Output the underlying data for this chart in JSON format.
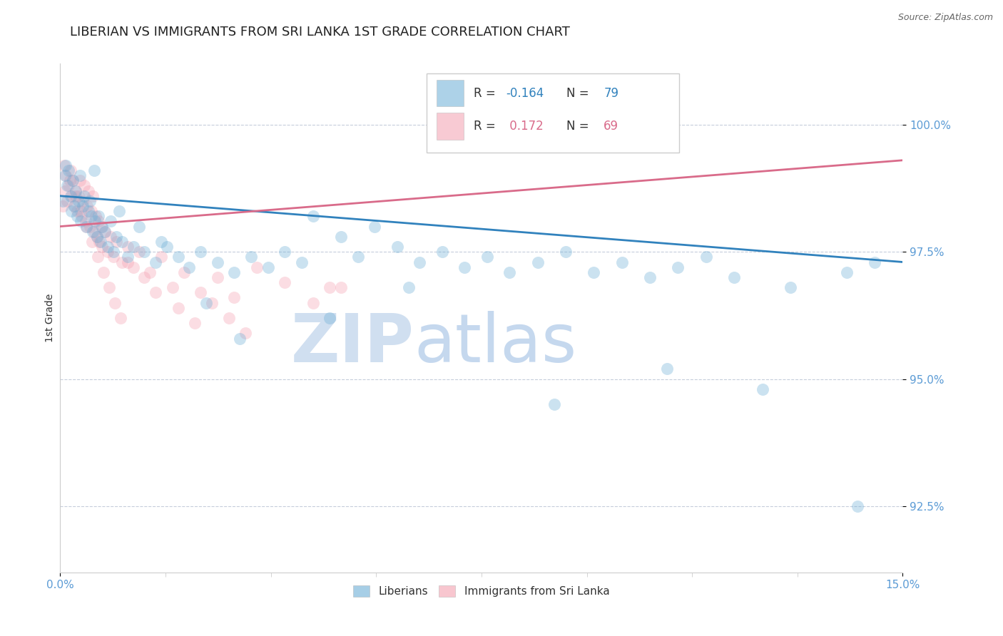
{
  "title": "LIBERIAN VS IMMIGRANTS FROM SRI LANKA 1ST GRADE CORRELATION CHART",
  "source_text": "Source: ZipAtlas.com",
  "ylabel": "1st Grade",
  "xlim": [
    0.0,
    15.0
  ],
  "ylim": [
    91.2,
    101.2
  ],
  "yticks": [
    92.5,
    95.0,
    97.5,
    100.0
  ],
  "ytick_labels": [
    "92.5%",
    "95.0%",
    "97.5%",
    "100.0%"
  ],
  "blue_scatter_x": [
    0.05,
    0.08,
    0.12,
    0.15,
    0.18,
    0.2,
    0.22,
    0.25,
    0.28,
    0.3,
    0.33,
    0.36,
    0.4,
    0.43,
    0.46,
    0.5,
    0.53,
    0.55,
    0.58,
    0.62,
    0.65,
    0.68,
    0.72,
    0.75,
    0.8,
    0.85,
    0.9,
    0.95,
    1.0,
    1.1,
    1.2,
    1.3,
    1.5,
    1.7,
    1.9,
    2.1,
    2.3,
    2.5,
    2.8,
    3.1,
    3.4,
    3.7,
    4.0,
    4.3,
    4.5,
    5.0,
    5.3,
    5.6,
    6.0,
    6.4,
    6.8,
    7.2,
    7.6,
    8.0,
    8.5,
    9.0,
    9.5,
    10.0,
    10.5,
    11.0,
    11.5,
    12.0,
    13.0,
    14.0,
    14.5,
    0.1,
    0.35,
    0.6,
    1.05,
    1.4,
    1.8,
    2.6,
    3.2,
    4.8,
    6.2,
    8.8,
    10.8,
    12.5,
    14.2
  ],
  "blue_scatter_y": [
    98.5,
    99.0,
    98.8,
    99.1,
    98.6,
    98.3,
    98.9,
    98.4,
    98.7,
    98.2,
    98.5,
    98.1,
    98.4,
    98.6,
    98.0,
    98.3,
    98.5,
    98.2,
    97.9,
    98.1,
    97.8,
    98.2,
    97.7,
    98.0,
    97.9,
    97.6,
    98.1,
    97.5,
    97.8,
    97.7,
    97.4,
    97.6,
    97.5,
    97.3,
    97.6,
    97.4,
    97.2,
    97.5,
    97.3,
    97.1,
    97.4,
    97.2,
    97.5,
    97.3,
    98.2,
    97.8,
    97.4,
    98.0,
    97.6,
    97.3,
    97.5,
    97.2,
    97.4,
    97.1,
    97.3,
    97.5,
    97.1,
    97.3,
    97.0,
    97.2,
    97.4,
    97.0,
    96.8,
    97.1,
    97.3,
    99.2,
    99.0,
    99.1,
    98.3,
    98.0,
    97.7,
    96.5,
    95.8,
    96.2,
    96.8,
    94.5,
    95.2,
    94.8,
    92.5
  ],
  "pink_scatter_x": [
    0.05,
    0.08,
    0.1,
    0.12,
    0.15,
    0.18,
    0.2,
    0.22,
    0.25,
    0.28,
    0.3,
    0.33,
    0.35,
    0.38,
    0.4,
    0.43,
    0.45,
    0.48,
    0.5,
    0.53,
    0.55,
    0.58,
    0.6,
    0.63,
    0.65,
    0.68,
    0.7,
    0.73,
    0.75,
    0.8,
    0.85,
    0.9,
    0.95,
    1.0,
    1.1,
    1.2,
    1.3,
    1.4,
    1.6,
    1.8,
    2.0,
    2.2,
    2.5,
    2.8,
    3.1,
    3.5,
    4.0,
    4.5,
    5.0,
    0.07,
    0.17,
    0.27,
    0.37,
    0.47,
    0.57,
    0.67,
    0.77,
    0.87,
    0.97,
    1.07,
    1.2,
    1.5,
    1.7,
    2.1,
    2.4,
    2.7,
    3.0,
    3.3,
    4.8
  ],
  "pink_scatter_y": [
    98.4,
    98.7,
    99.0,
    98.5,
    98.8,
    99.1,
    98.6,
    98.9,
    98.4,
    98.7,
    98.3,
    98.6,
    98.9,
    98.2,
    98.5,
    98.8,
    98.1,
    98.4,
    98.7,
    98.0,
    98.3,
    98.6,
    97.9,
    98.2,
    97.8,
    98.1,
    97.7,
    98.0,
    97.6,
    97.9,
    97.5,
    97.8,
    97.4,
    97.7,
    97.3,
    97.6,
    97.2,
    97.5,
    97.1,
    97.4,
    96.8,
    97.1,
    96.7,
    97.0,
    96.6,
    97.2,
    96.9,
    96.5,
    96.8,
    99.2,
    98.9,
    98.6,
    98.3,
    98.0,
    97.7,
    97.4,
    97.1,
    96.8,
    96.5,
    96.2,
    97.3,
    97.0,
    96.7,
    96.4,
    96.1,
    96.5,
    96.2,
    95.9,
    96.8
  ],
  "blue_line_x": [
    0.0,
    15.0
  ],
  "blue_line_y": [
    98.6,
    97.3
  ],
  "pink_line_x": [
    0.0,
    15.0
  ],
  "pink_line_y": [
    98.0,
    99.3
  ],
  "scatter_size": 150,
  "scatter_alpha": 0.35,
  "blue_color": "#6baed6",
  "pink_color": "#f4a0b0",
  "blue_line_color": "#3182bd",
  "pink_line_color": "#d96b8a",
  "grid_color": "#c0c8d8",
  "background_color": "#ffffff",
  "watermark_zip_color": "#d0dff0",
  "watermark_atlas_color": "#c5d8ee",
  "title_fontsize": 13,
  "axis_label_fontsize": 10,
  "tick_fontsize": 11,
  "tick_color": "#5b9bd5",
  "source_fontsize": 9
}
